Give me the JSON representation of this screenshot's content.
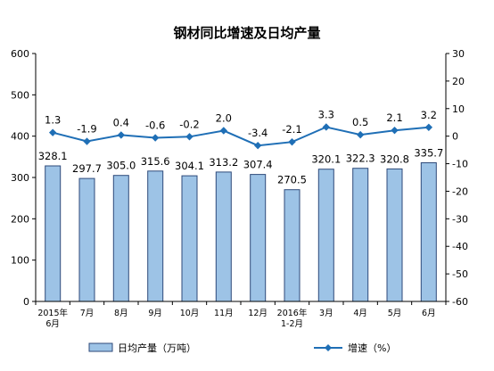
{
  "chart_data": {
    "type": "bar",
    "title": "钢材同比增速及日均产量",
    "categories": [
      "2015年\n6月",
      "7月",
      "8月",
      "9月",
      "10月",
      "11月",
      "12月",
      "2016年\n1-2月",
      "3月",
      "4月",
      "5月",
      "6月"
    ],
    "series": [
      {
        "name": "日均产量（万吨）",
        "type": "bar",
        "axis": "left",
        "values": [
          328.1,
          297.7,
          305.0,
          315.6,
          304.1,
          313.2,
          307.4,
          270.5,
          320.1,
          322.3,
          320.8,
          335.7
        ],
        "labels": [
          "328.1",
          "297.7",
          "305.0",
          "315.6",
          "304.1",
          "313.2",
          "307.4",
          "270.5",
          "320.1",
          "322.3",
          "320.8",
          "335.7"
        ]
      },
      {
        "name": "增速（%）",
        "type": "line",
        "axis": "right",
        "values": [
          1.3,
          -1.9,
          0.4,
          -0.6,
          -0.2,
          2.0,
          -3.4,
          -2.1,
          3.3,
          0.5,
          2.1,
          3.2
        ],
        "labels": [
          "1.3",
          "-1.9",
          "0.4",
          "-0.6",
          "-0.2",
          "2.0",
          "-3.4",
          "-2.1",
          "3.3",
          "0.5",
          "2.1",
          "3.2"
        ]
      }
    ],
    "ylim_left": [
      0,
      600
    ],
    "yticks_left": [
      "0",
      "100",
      "200",
      "300",
      "400",
      "500",
      "600"
    ],
    "ylim_right": [
      -60,
      30
    ],
    "yticks_right": [
      "-60",
      "-50",
      "-40",
      "-30",
      "-20",
      "-10",
      "0",
      "10",
      "20",
      "30"
    ],
    "grid": false,
    "legend_position": "bottom",
    "colors": {
      "bar_fill": "#9dc3e6",
      "bar_stroke": "#2e4a7a",
      "line": "#1f6fb6",
      "axis": "#000000"
    }
  }
}
